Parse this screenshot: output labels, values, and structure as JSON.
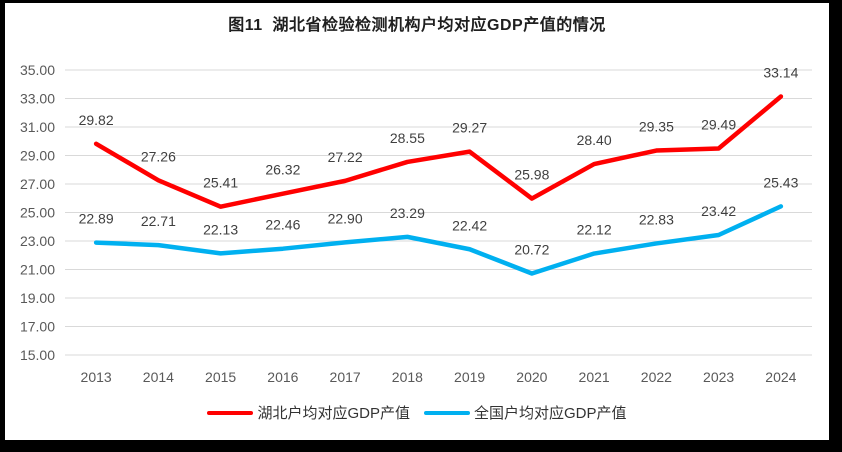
{
  "chart_data": {
    "type": "line",
    "title": "图11  湖北省检验检测机构户均对应GDP产值的情况",
    "categories": [
      "2013",
      "2014",
      "2015",
      "2016",
      "2017",
      "2018",
      "2019",
      "2020",
      "2021",
      "2022",
      "2023",
      "2024"
    ],
    "series": [
      {
        "name": "湖北户均对应GDP产值",
        "color": "#FF0000",
        "values": [
          29.82,
          27.26,
          25.41,
          26.32,
          27.22,
          28.55,
          29.27,
          25.98,
          28.4,
          29.35,
          29.49,
          33.14
        ]
      },
      {
        "name": "全国户均对应GDP产值",
        "color": "#00B0F0",
        "values": [
          22.89,
          22.71,
          22.13,
          22.46,
          22.9,
          23.29,
          22.42,
          20.72,
          22.12,
          22.83,
          23.42,
          25.43
        ]
      }
    ],
    "ylim": [
      15,
      35
    ],
    "ytick_step": 2,
    "ytick_labels": [
      "15.00",
      "17.00",
      "19.00",
      "21.00",
      "23.00",
      "25.00",
      "27.00",
      "29.00",
      "31.00",
      "33.00",
      "35.00"
    ],
    "xlabel": "",
    "ylabel": "",
    "grid": true,
    "data_labels": true,
    "data_label_decimals": 2,
    "legend_position": "bottom",
    "colors": {
      "gridline": "#D9D9D9",
      "tick_text": "#595959",
      "data_label_text": "#404040",
      "frame_border": "#000000",
      "background": "#FFFFFF"
    }
  }
}
